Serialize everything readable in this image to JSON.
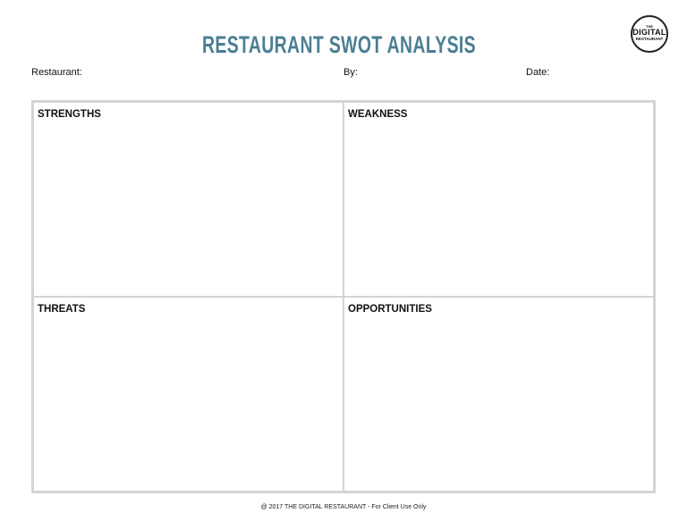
{
  "title": "RESTAURANT SWOT ANALYSIS",
  "title_color": "#4a7f94",
  "logo": {
    "top": "THE",
    "middle": "DIGITAL",
    "bottom": "RESTAURANT"
  },
  "fields": {
    "restaurant": "Restaurant:",
    "by": "By:",
    "date": "Date:"
  },
  "quadrants": [
    {
      "label": "STRENGTHS"
    },
    {
      "label": "WEAKNESS"
    },
    {
      "label": "THREATS"
    },
    {
      "label": "OPPORTUNITIES"
    }
  ],
  "footer": "@ 2017  THE DIGITAL RESTAURANT - For Client Use Only"
}
